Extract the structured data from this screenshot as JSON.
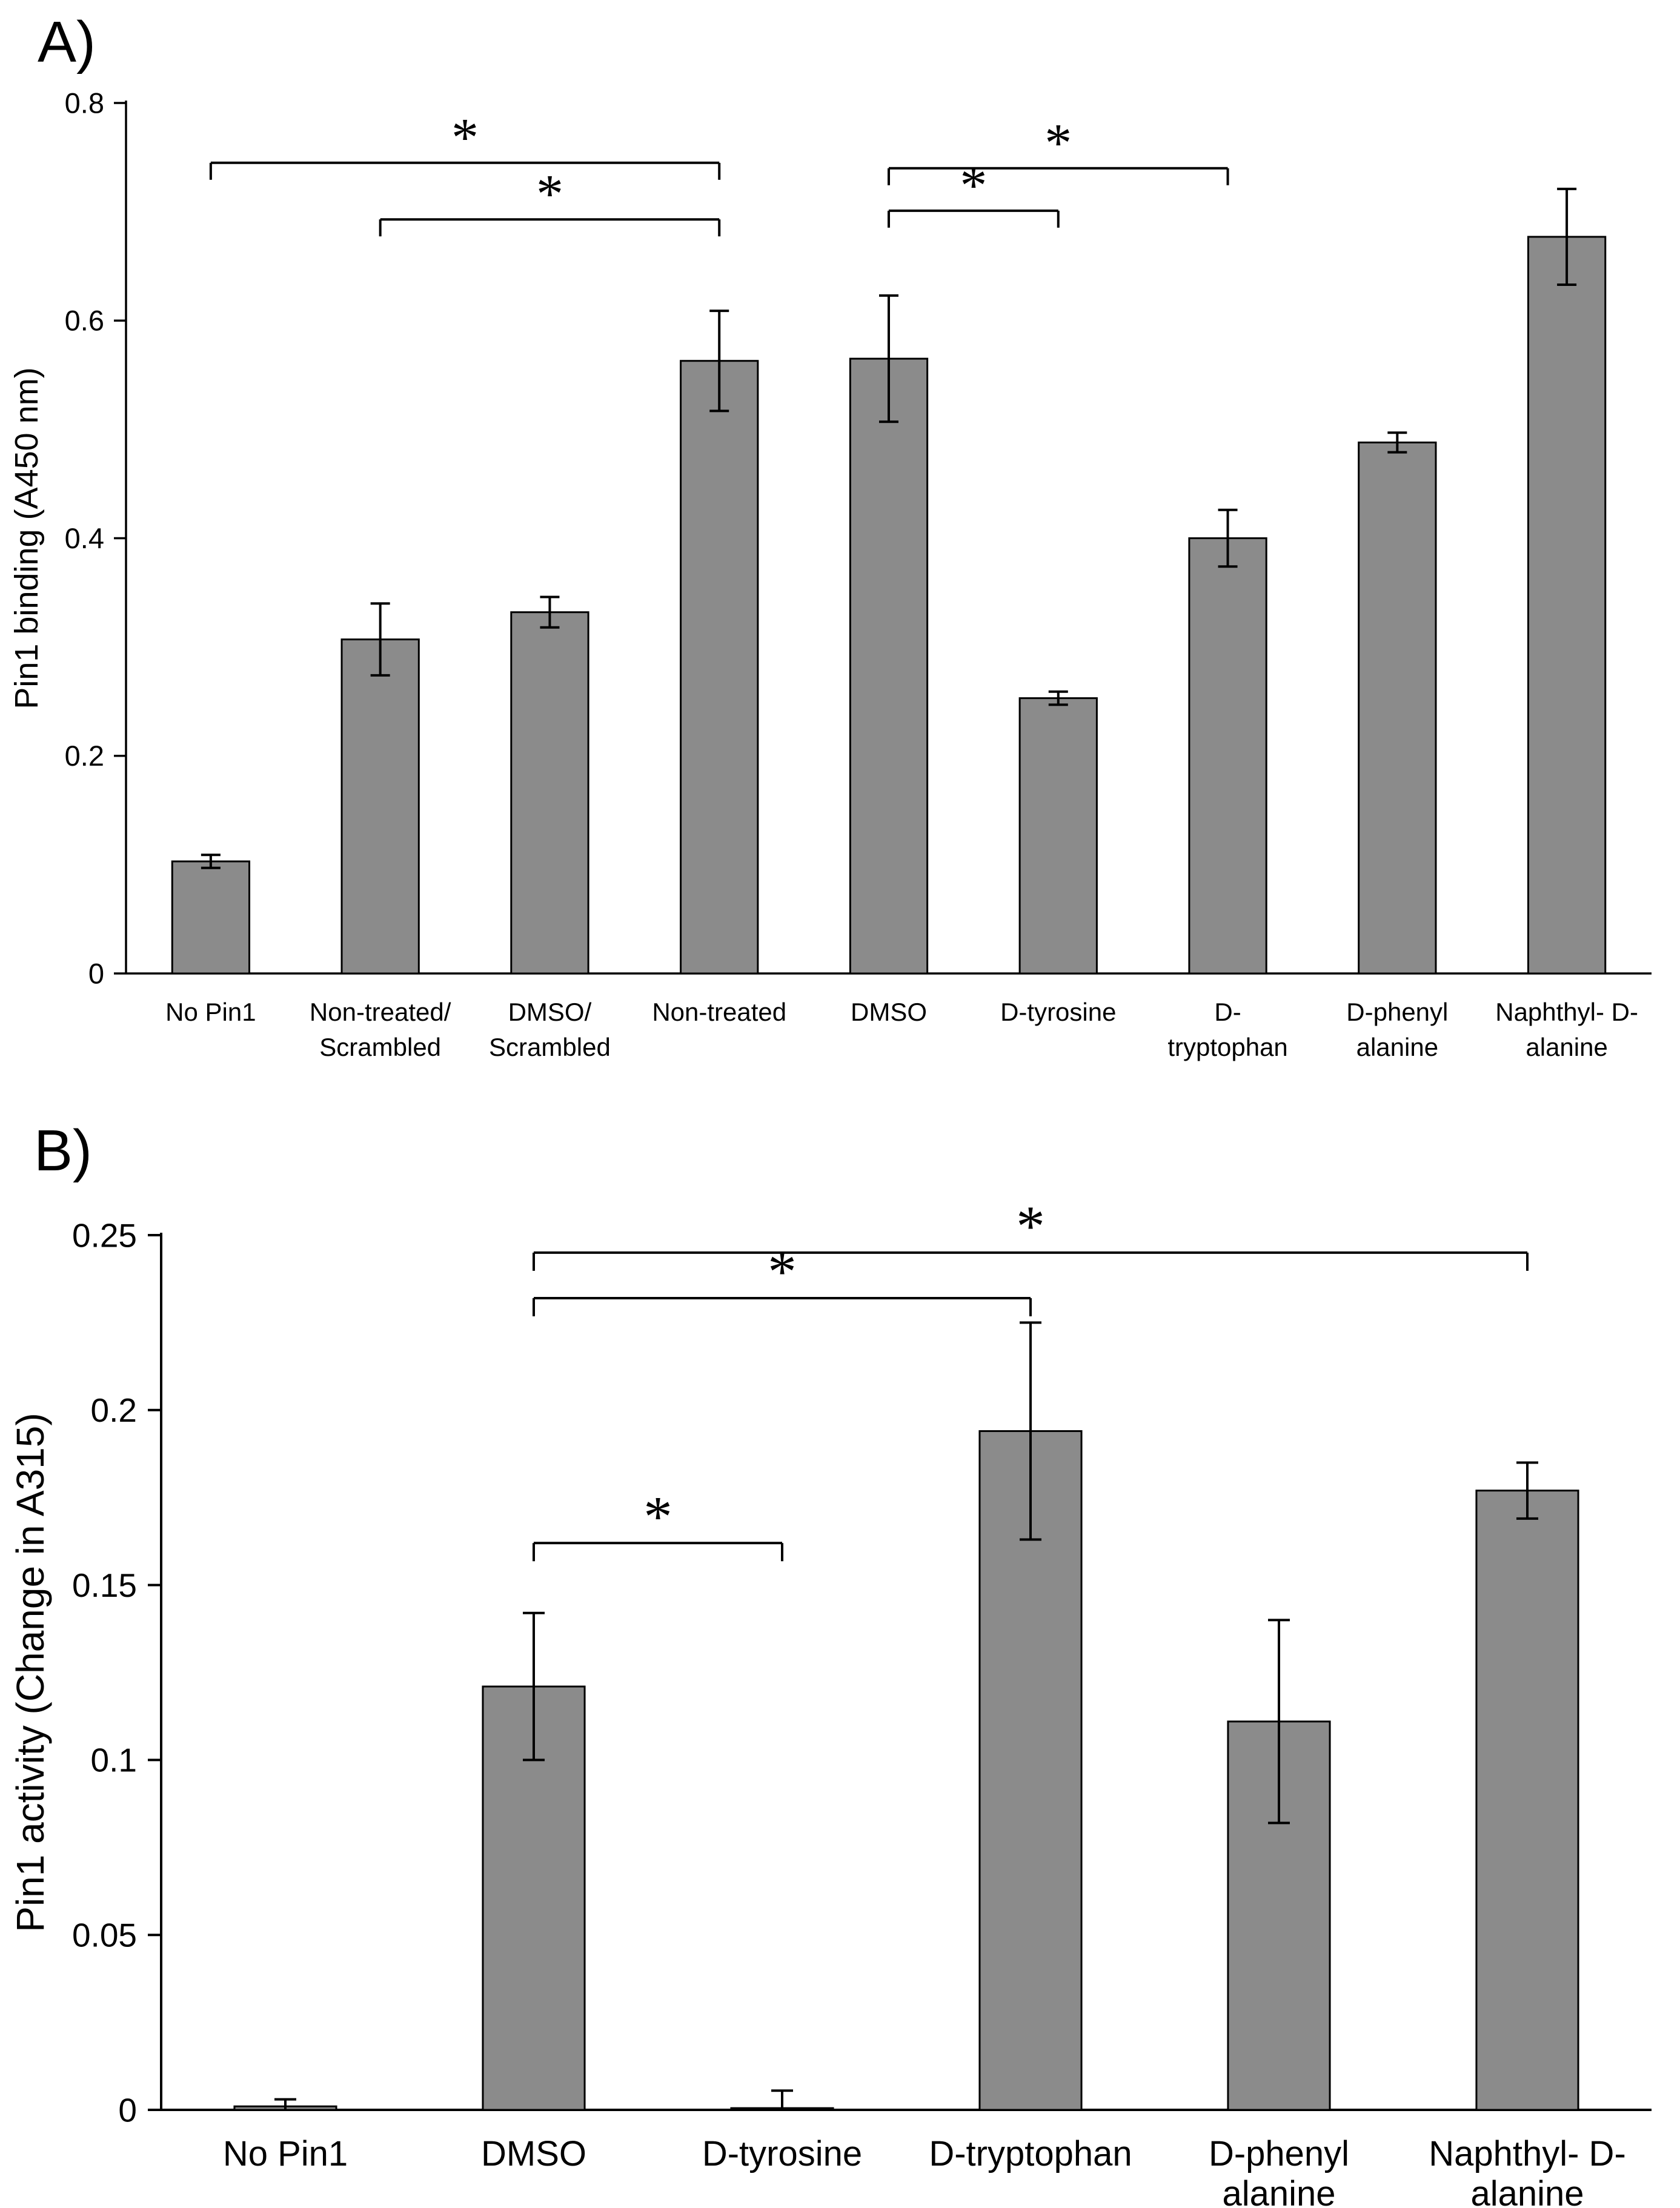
{
  "figure": {
    "background": "#ffffff",
    "bar_color": "#8b8b8b",
    "axis_color": "#000000"
  },
  "panels": {
    "a_label": "A)",
    "b_label": "B)"
  },
  "chart_data": [
    {
      "id": "A",
      "type": "bar",
      "title": "",
      "xlabel": "",
      "ylabel": "Pin1 binding (A450 nm)",
      "ylim": [
        0,
        0.8
      ],
      "yticks": [
        0,
        0.2,
        0.4,
        0.6,
        0.8
      ],
      "ytick_labels": [
        "0",
        "0.2",
        "0.4",
        "0.6",
        "0.8"
      ],
      "grid": false,
      "legend": null,
      "bar_color": "#8b8b8b",
      "categories": [
        "No Pin1",
        "Non-treated/\nScrambled",
        "DMSO/\nScrambled",
        "Non-treated",
        "DMSO",
        "D-tyrosine",
        "D-\ntryptophan",
        "D-phenyl\nalanine",
        "Naphthyl- D-\nalanine"
      ],
      "values": [
        0.103,
        0.307,
        0.332,
        0.563,
        0.565,
        0.253,
        0.4,
        0.488,
        0.677
      ],
      "errors": [
        0.006,
        0.033,
        0.014,
        0.046,
        0.058,
        0.006,
        0.026,
        0.009,
        0.044
      ],
      "significance_brackets": [
        {
          "from": 0,
          "to": 3,
          "y": 0.745,
          "label": "*"
        },
        {
          "from": 1,
          "to": 3,
          "y": 0.693,
          "label": "*"
        },
        {
          "from": 4,
          "to": 5,
          "y": 0.701,
          "label": "*"
        },
        {
          "from": 4,
          "to": 6,
          "y": 0.74,
          "label": "*"
        }
      ]
    },
    {
      "id": "B",
      "type": "bar",
      "title": "",
      "xlabel": "",
      "ylabel": "Pin1 activity (Change in A315)",
      "ylim": [
        0,
        0.25
      ],
      "yticks": [
        0,
        0.05,
        0.1,
        0.15,
        0.2,
        0.25
      ],
      "ytick_labels": [
        "0",
        "0.05",
        "0.1",
        "0.15",
        "0.2",
        "0.25"
      ],
      "grid": false,
      "legend": null,
      "bar_color": "#8b8b8b",
      "categories": [
        "No Pin1",
        "DMSO",
        "D-tyrosine",
        "D-tryptophan",
        "D-phenyl\nalanine",
        "Naphthyl- D-\nalanine"
      ],
      "values": [
        0.001,
        0.121,
        0.0005,
        0.194,
        0.111,
        0.177
      ],
      "errors": [
        0.002,
        0.021,
        0.005,
        0.031,
        0.029,
        0.008
      ],
      "significance_brackets": [
        {
          "from": 1,
          "to": 2,
          "y": 0.162,
          "label": "*"
        },
        {
          "from": 1,
          "to": 3,
          "y": 0.232,
          "label": "*"
        },
        {
          "from": 1,
          "to": 5,
          "y": 0.245,
          "label": "*"
        }
      ]
    }
  ]
}
